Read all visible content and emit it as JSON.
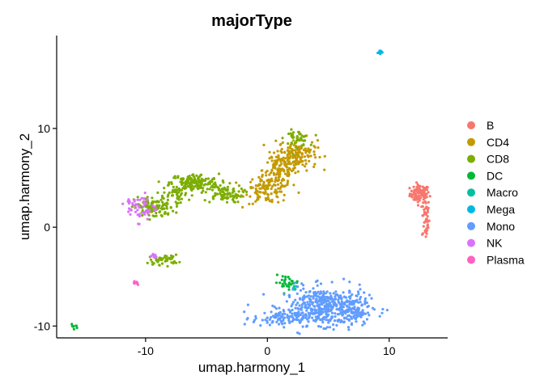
{
  "chart_data": {
    "type": "scatter",
    "title": "majorType",
    "xlabel": "umap.harmony_1",
    "ylabel": "umap.harmony_2",
    "xlim": [
      -17.3,
      14.8
    ],
    "ylim": [
      -11.2,
      19.4
    ],
    "xticks": [
      -10,
      0,
      10
    ],
    "yticks": [
      -10,
      0,
      10
    ],
    "grid": false,
    "legend_position": "right",
    "series": [
      {
        "name": "B",
        "color": "#F8766D",
        "clusters": [
          {
            "cx": 12.5,
            "cy": 3.4,
            "sx": 0.4,
            "sy": 0.45,
            "n": 90
          },
          {
            "cx": 13.0,
            "cy": 0.9,
            "sx": 0.15,
            "sy": 1.1,
            "n": 45
          }
        ]
      },
      {
        "name": "CD4",
        "color": "#C49A00",
        "clusters": [
          {
            "cx": 2.5,
            "cy": 7.4,
            "sx": 0.8,
            "sy": 0.8,
            "n": 150
          },
          {
            "cx": 1.0,
            "cy": 5.8,
            "sx": 0.7,
            "sy": 0.9,
            "n": 110
          },
          {
            "cx": 0.0,
            "cy": 3.8,
            "sx": 0.9,
            "sy": 0.7,
            "n": 110
          }
        ]
      },
      {
        "name": "CD8",
        "color": "#7CAE00",
        "clusters": [
          {
            "cx": 2.4,
            "cy": 9.0,
            "sx": 0.5,
            "sy": 0.4,
            "n": 45
          },
          {
            "cx": -6.0,
            "cy": 4.5,
            "sx": 1.0,
            "sy": 0.45,
            "n": 160
          },
          {
            "cx": -3.6,
            "cy": 3.4,
            "sx": 0.8,
            "sy": 0.45,
            "n": 80
          },
          {
            "cx": -9.3,
            "cy": 2.0,
            "sx": 0.8,
            "sy": 0.55,
            "n": 120
          },
          {
            "cx": -8.5,
            "cy": -3.3,
            "sx": 0.6,
            "sy": 0.25,
            "n": 45
          },
          {
            "cx": -7.5,
            "cy": 3.3,
            "sx": 0.5,
            "sy": 0.5,
            "n": 40
          }
        ]
      },
      {
        "name": "DC",
        "color": "#00B838",
        "clusters": [
          {
            "cx": 1.6,
            "cy": -5.6,
            "sx": 0.5,
            "sy": 0.35,
            "n": 30
          },
          {
            "cx": -15.8,
            "cy": -10.0,
            "sx": 0.15,
            "sy": 0.12,
            "n": 8
          }
        ]
      },
      {
        "name": "Macro",
        "color": "#00C19F",
        "clusters": [
          {
            "cx": 2.2,
            "cy": -6.2,
            "sx": 0.15,
            "sy": 0.15,
            "n": 6
          }
        ]
      },
      {
        "name": "Mega",
        "color": "#00B9E3",
        "clusters": [
          {
            "cx": 9.4,
            "cy": 17.7,
            "sx": 0.15,
            "sy": 0.12,
            "n": 10
          }
        ]
      },
      {
        "name": "Mono",
        "color": "#619CFF",
        "clusters": [
          {
            "cx": 4.8,
            "cy": -8.0,
            "sx": 1.7,
            "sy": 0.95,
            "n": 420
          },
          {
            "cx": 1.2,
            "cy": -9.2,
            "sx": 1.2,
            "sy": 0.4,
            "n": 110
          },
          {
            "cx": 7.0,
            "cy": -8.6,
            "sx": 0.6,
            "sy": 0.7,
            "n": 70
          }
        ]
      },
      {
        "name": "NK",
        "color": "#DB72FB",
        "clusters": [
          {
            "cx": -10.3,
            "cy": 2.0,
            "sx": 0.6,
            "sy": 0.7,
            "n": 50
          },
          {
            "cx": -9.4,
            "cy": -2.9,
            "sx": 0.2,
            "sy": 0.15,
            "n": 8
          },
          {
            "cx": -11.5,
            "cy": 2.7,
            "sx": 0.2,
            "sy": 0.15,
            "n": 5
          }
        ]
      },
      {
        "name": "Plasma",
        "color": "#FF61C3",
        "clusters": [
          {
            "cx": -10.8,
            "cy": -5.6,
            "sx": 0.15,
            "sy": 0.12,
            "n": 10
          }
        ]
      }
    ]
  }
}
